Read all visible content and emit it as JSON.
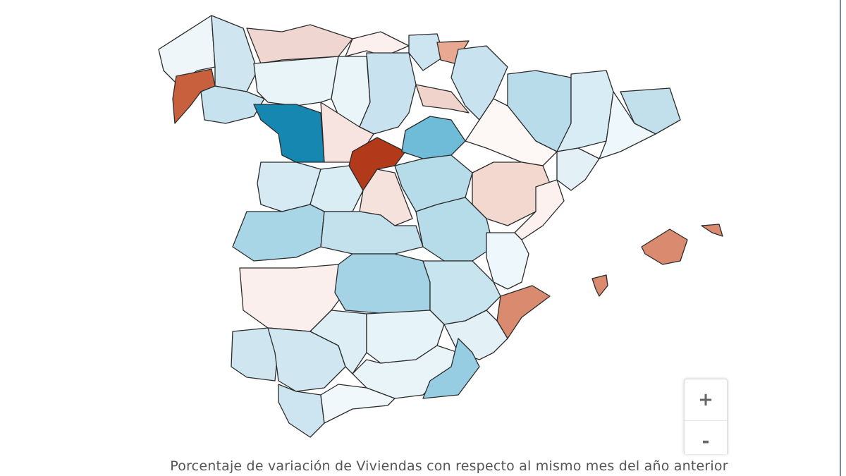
{
  "map": {
    "caption": "Porcentaje de variación de Viviendas con respecto al mismo mes del año anterior"
  },
  "zoom": {
    "zoom_in": "+",
    "zoom_out": "-"
  }
}
